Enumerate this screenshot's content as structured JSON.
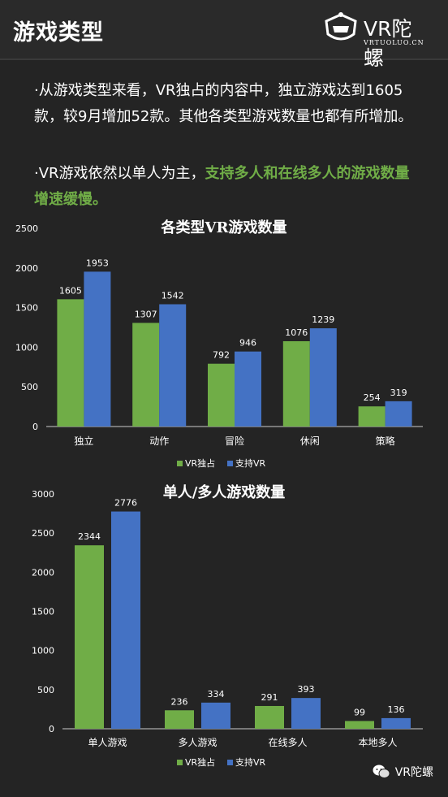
{
  "header": {
    "title": "游戏类型",
    "logo_text": "VR陀螺",
    "logo_sub": "VRTUOLUO.CN"
  },
  "intro": {
    "p1": "·从游戏类型来看，VR独占的内容中，独立游戏达到1605款，较9月增加52款。其他各类型游戏数量也都有所增加。",
    "p2_prefix": "·VR游戏依然以单人为主，",
    "p2_highlight": "支持多人和在线多人的游戏数量增速缓慢。"
  },
  "colors": {
    "green": "#70ad47",
    "blue": "#4472c4",
    "text": "#ffffff",
    "axis": "#cccccc"
  },
  "chart_data": [
    {
      "type": "bar",
      "title": "各类型VR游戏数量",
      "categories": [
        "独立",
        "动作",
        "冒险",
        "休闲",
        "策略"
      ],
      "series": [
        {
          "name": "VR独占",
          "values": [
            1605,
            1307,
            792,
            1076,
            254
          ]
        },
        {
          "name": "支持VR",
          "values": [
            1953,
            1542,
            946,
            1239,
            319
          ]
        }
      ],
      "ylim": [
        0,
        2500
      ],
      "yticks": [
        0,
        500,
        1000,
        1500,
        2000,
        2500
      ],
      "legend": "bottom"
    },
    {
      "type": "bar",
      "title": "单人/多人游戏数量",
      "categories": [
        "单人游戏",
        "多人游戏",
        "在线多人",
        "本地多人"
      ],
      "series": [
        {
          "name": "VR独占",
          "values": [
            2344,
            236,
            291,
            99
          ]
        },
        {
          "name": "支持VR",
          "values": [
            2776,
            334,
            393,
            136
          ]
        }
      ],
      "ylim": [
        0,
        3000
      ],
      "yticks": [
        0,
        500,
        1000,
        1500,
        2000,
        2500,
        3000
      ],
      "legend": "bottom"
    }
  ],
  "watermark": {
    "text": "VR陀螺"
  }
}
